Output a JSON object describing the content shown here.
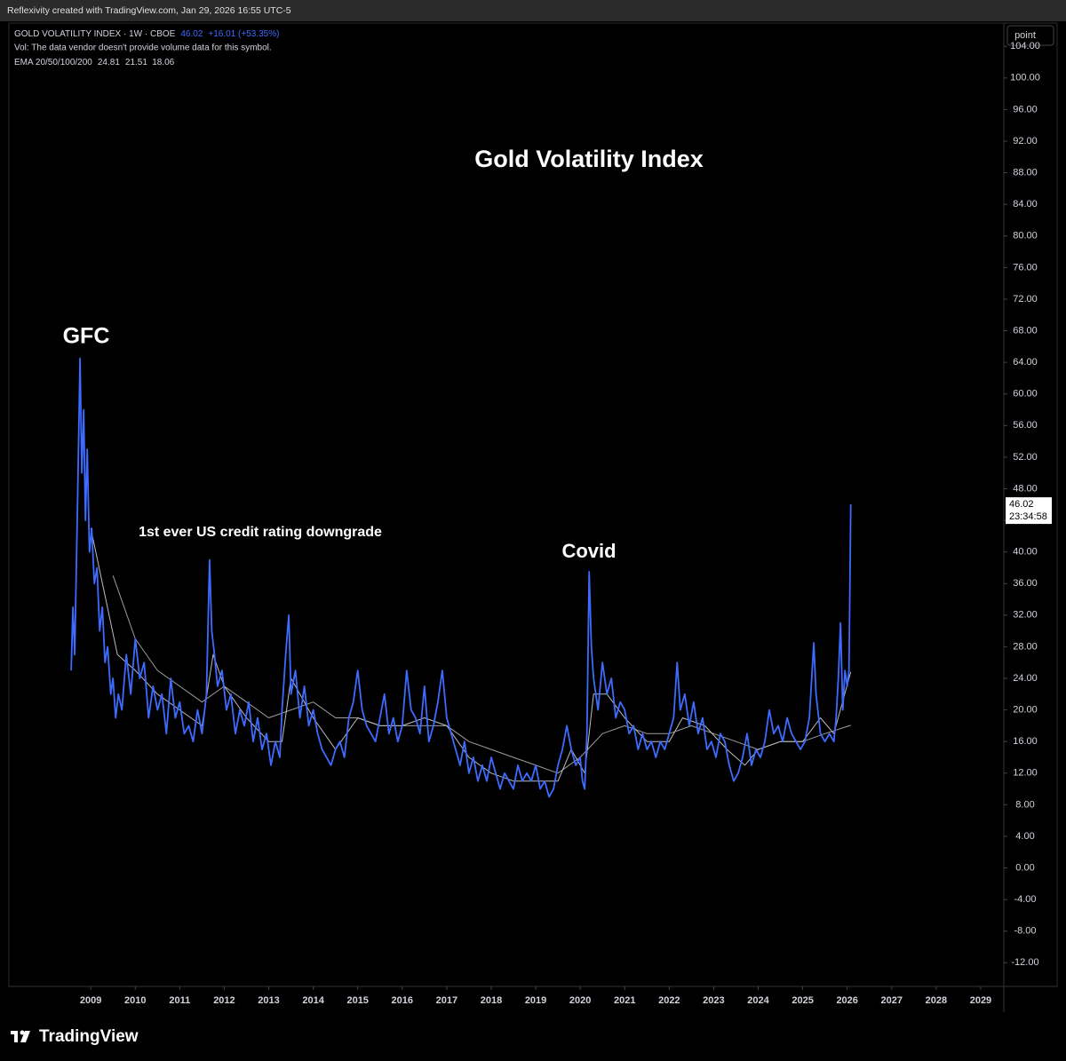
{
  "header": {
    "credit": "Reflexivity created with TradingView.com, Jan 29, 2026 16:55 UTC-5"
  },
  "toolbar": {
    "button": "point"
  },
  "legend": {
    "symbol": "GOLD VOLATILITY INDEX · 1W · CBOE",
    "change": "+16.01 (+53.35%)",
    "volume_note": "Vol: The data vendor doesn't provide volume data for this symbol.",
    "ema_label": "EMA 20/50/100/200",
    "ema_values": [
      24.81,
      21.51,
      18.06
    ]
  },
  "branding": "TradingView",
  "chart_data": {
    "type": "line",
    "title": "Gold Volatility Index",
    "annotations": [
      "GFC",
      "1st ever US credit rating downgrade",
      "Covid"
    ],
    "last_price": 46.02,
    "countdown": "23:34:58",
    "grid": false,
    "xlim": [
      2007.16,
      2029.52
    ],
    "xticks": [
      2009,
      2010,
      2011,
      2012,
      2013,
      2014,
      2015,
      2016,
      2017,
      2018,
      2019,
      2020,
      2021,
      2022,
      2023,
      2024,
      2025,
      2026,
      2027,
      2028,
      2029
    ],
    "ylim": [
      -15,
      106.5
    ],
    "yticks": [
      {
        "value": -12,
        "label": "-12.00"
      },
      {
        "value": -8,
        "label": "-8.00"
      },
      {
        "value": -4,
        "label": "-4.00"
      },
      {
        "value": 0,
        "label": "0.00"
      },
      {
        "value": 4,
        "label": "4.00"
      },
      {
        "value": 8,
        "label": "8.00"
      },
      {
        "value": 12,
        "label": "12.00"
      },
      {
        "value": 16,
        "label": "16.00"
      },
      {
        "value": 20,
        "label": "20.00"
      },
      {
        "value": 24,
        "label": "24.00"
      },
      {
        "value": 28,
        "label": "28.00"
      },
      {
        "value": 32,
        "label": "32.00"
      },
      {
        "value": 36,
        "label": "36.00"
      },
      {
        "value": 40,
        "label": "40.00"
      },
      {
        "value": 44,
        "label": "44.00"
      },
      {
        "value": 48,
        "label": "48.00"
      },
      {
        "value": 52,
        "label": "52.00"
      },
      {
        "value": 56,
        "label": "56.00"
      },
      {
        "value": 60,
        "label": "60.00"
      },
      {
        "value": 64,
        "label": "64.00"
      },
      {
        "value": 68,
        "label": "68.00"
      },
      {
        "value": 72,
        "label": "72.00"
      },
      {
        "value": 76,
        "label": "76.00"
      },
      {
        "value": 80,
        "label": "80.00"
      },
      {
        "value": 84,
        "label": "84.00"
      },
      {
        "value": 88,
        "label": "88.00"
      },
      {
        "value": 92,
        "label": "92.00"
      },
      {
        "value": 96,
        "label": "96.00"
      },
      {
        "value": 100,
        "label": "100.00"
      },
      {
        "value": 104,
        "label": "104.00"
      }
    ],
    "series": [
      {
        "name": "GOLD VOLATILITY INDEX",
        "color": "#3d6bff",
        "x": [
          2008.56,
          2008.6,
          2008.64,
          2008.7,
          2008.76,
          2008.8,
          2008.84,
          2008.88,
          2008.92,
          2008.97,
          2009.02,
          2009.08,
          2009.14,
          2009.2,
          2009.26,
          2009.32,
          2009.38,
          2009.45,
          2009.5,
          2009.56,
          2009.62,
          2009.7,
          2009.8,
          2009.9,
          2010.0,
          2010.1,
          2010.2,
          2010.3,
          2010.4,
          2010.5,
          2010.6,
          2010.7,
          2010.8,
          2010.9,
          2011.0,
          2011.1,
          2011.2,
          2011.3,
          2011.4,
          2011.5,
          2011.6,
          2011.67,
          2011.72,
          2011.78,
          2011.85,
          2011.95,
          2012.05,
          2012.15,
          2012.25,
          2012.35,
          2012.45,
          2012.55,
          2012.65,
          2012.75,
          2012.85,
          2012.95,
          2013.05,
          2013.15,
          2013.25,
          2013.3,
          2013.38,
          2013.45,
          2013.5,
          2013.6,
          2013.7,
          2013.8,
          2013.9,
          2014.0,
          2014.1,
          2014.2,
          2014.3,
          2014.4,
          2014.5,
          2014.6,
          2014.7,
          2014.8,
          2014.9,
          2015.0,
          2015.1,
          2015.2,
          2015.3,
          2015.4,
          2015.5,
          2015.6,
          2015.7,
          2015.8,
          2015.9,
          2016.0,
          2016.1,
          2016.2,
          2016.3,
          2016.4,
          2016.5,
          2016.6,
          2016.7,
          2016.8,
          2016.9,
          2017.0,
          2017.1,
          2017.2,
          2017.3,
          2017.4,
          2017.5,
          2017.6,
          2017.7,
          2017.8,
          2017.9,
          2018.0,
          2018.1,
          2018.2,
          2018.3,
          2018.4,
          2018.5,
          2018.6,
          2018.7,
          2018.8,
          2018.9,
          2019.0,
          2019.1,
          2019.2,
          2019.3,
          2019.4,
          2019.5,
          2019.6,
          2019.7,
          2019.8,
          2019.9,
          2020.0,
          2020.05,
          2020.1,
          2020.15,
          2020.2,
          2020.25,
          2020.3,
          2020.4,
          2020.5,
          2020.6,
          2020.7,
          2020.8,
          2020.9,
          2021.0,
          2021.1,
          2021.2,
          2021.3,
          2021.4,
          2021.5,
          2021.6,
          2021.7,
          2021.8,
          2021.9,
          2022.0,
          2022.1,
          2022.18,
          2022.25,
          2022.35,
          2022.45,
          2022.55,
          2022.65,
          2022.75,
          2022.85,
          2022.95,
          2023.05,
          2023.15,
          2023.25,
          2023.35,
          2023.45,
          2023.55,
          2023.65,
          2023.75,
          2023.85,
          2023.95,
          2024.05,
          2024.15,
          2024.25,
          2024.35,
          2024.45,
          2024.55,
          2024.65,
          2024.75,
          2024.85,
          2024.95,
          2025.05,
          2025.15,
          2025.25,
          2025.3,
          2025.4,
          2025.5,
          2025.6,
          2025.7,
          2025.75,
          2025.8,
          2025.85,
          2025.9,
          2025.95,
          2026.0,
          2026.04,
          2026.08
        ],
        "values": [
          25,
          33,
          27,
          45,
          64.5,
          50,
          58,
          44,
          53,
          40,
          43,
          36,
          38,
          30,
          33,
          26,
          28,
          22,
          24,
          19,
          22,
          20,
          27,
          22,
          29,
          24,
          26,
          19,
          23,
          20,
          22,
          17,
          24,
          19,
          21,
          17,
          18,
          16,
          20,
          17,
          22,
          39,
          30,
          27,
          23,
          25,
          20,
          22,
          17,
          20,
          18,
          21,
          16,
          19,
          15,
          17,
          13,
          16,
          14,
          20,
          27,
          32,
          22,
          25,
          19,
          23,
          18,
          20,
          17,
          15,
          14,
          13,
          15,
          16,
          14,
          19,
          21,
          25,
          20,
          18,
          17,
          16,
          19,
          22,
          17,
          19,
          16,
          18,
          25,
          20,
          19,
          17,
          23,
          16,
          18,
          21,
          25,
          19,
          17,
          15,
          13,
          16,
          12,
          14,
          11,
          13,
          11,
          14,
          12,
          10,
          12,
          11,
          10,
          13,
          11,
          12,
          11,
          13,
          10,
          11,
          9,
          10,
          13,
          15,
          18,
          15,
          13,
          14,
          11,
          10,
          17,
          37.5,
          28,
          24,
          20,
          26,
          22,
          24,
          19,
          21,
          20,
          17,
          18,
          15,
          17,
          15,
          16,
          14,
          16,
          15,
          17,
          19,
          26,
          20,
          22,
          18,
          21,
          17,
          19,
          15,
          16,
          14,
          17,
          16,
          13,
          11,
          12,
          14,
          17,
          13,
          15,
          14,
          16,
          20,
          17,
          18,
          16,
          19,
          17,
          16,
          15,
          16,
          19,
          28.5,
          22,
          17,
          16,
          17,
          16,
          19,
          24,
          31,
          20,
          25,
          23,
          25,
          46.02
        ]
      },
      {
        "color": "#bdbdbd",
        "x": [
          2009.0,
          2009.3,
          2009.6,
          2010.0,
          2010.5,
          2011.0,
          2011.5,
          2011.75,
          2012.0,
          2012.5,
          2013.0,
          2013.3,
          2013.5,
          2014.0,
          2014.5,
          2015.0,
          2015.5,
          2016.0,
          2016.5,
          2017.0,
          2017.5,
          2018.0,
          2018.5,
          2019.0,
          2019.5,
          2019.8,
          2020.1,
          2020.3,
          2020.6,
          2021.0,
          2021.5,
          2022.0,
          2022.3,
          2022.8,
          2023.3,
          2023.7,
          2024.0,
          2024.5,
          2025.0,
          2025.4,
          2025.7,
          2026.08
        ],
        "values": [
          43,
          35,
          27,
          25,
          22,
          20,
          18,
          27,
          23,
          19,
          16,
          16,
          24,
          19,
          15,
          19,
          18,
          18,
          19,
          18,
          14,
          12,
          11,
          11,
          11,
          15,
          12,
          22,
          22,
          19,
          16,
          16,
          19,
          18,
          15,
          13,
          15,
          16,
          16,
          19,
          17,
          24.81
        ]
      },
      {
        "color": "#9e9e9e",
        "x": [
          2009.5,
          2010.0,
          2010.5,
          2011.0,
          2011.5,
          2012.0,
          2012.5,
          2013.0,
          2013.5,
          2014.0,
          2014.5,
          2015.0,
          2015.5,
          2016.0,
          2016.5,
          2017.0,
          2017.5,
          2018.0,
          2018.5,
          2019.0,
          2019.5,
          2020.0,
          2020.5,
          2021.0,
          2021.5,
          2022.0,
          2022.5,
          2023.0,
          2023.5,
          2024.0,
          2024.5,
          2025.0,
          2025.5,
          2026.08
        ],
        "values": [
          37,
          29,
          25,
          23,
          21,
          23,
          21,
          19,
          20,
          21,
          19,
          19,
          18,
          18,
          18,
          18,
          16,
          15,
          14,
          13,
          12,
          14,
          17,
          18,
          17,
          17,
          18,
          17,
          16,
          15,
          16,
          16,
          17,
          18.06
        ]
      }
    ]
  }
}
